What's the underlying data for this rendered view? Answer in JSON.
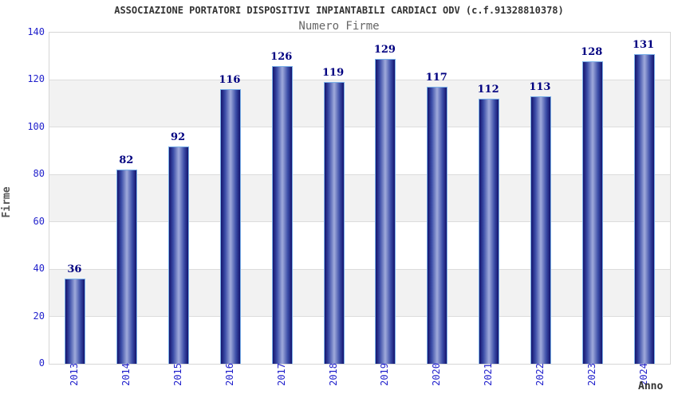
{
  "header": {
    "title": "ASSOCIAZIONE PORTATORI DISPOSITIVI INPIANTABILI CARDIACI ODV (c.f.91328810378)",
    "subtitle": "Numero Firme"
  },
  "chart_data": {
    "type": "bar",
    "title": "ASSOCIAZIONE PORTATORI DISPOSITIVI INPIANTABILI CARDIACI ODV (c.f.91328810378)",
    "subtitle": "Numero Firme",
    "categories": [
      "2013",
      "2014",
      "2015",
      "2016",
      "2017",
      "2018",
      "2019",
      "2020",
      "2021",
      "2022",
      "2023",
      "2024"
    ],
    "values": [
      36,
      82,
      92,
      116,
      126,
      119,
      129,
      117,
      112,
      113,
      128,
      131
    ],
    "xlabel": "Anno",
    "ylabel": "Firme",
    "ylim": [
      0,
      140
    ],
    "yticks": [
      0,
      20,
      40,
      60,
      80,
      100,
      120,
      140
    ],
    "gray_bands": [
      [
        20,
        40
      ],
      [
        60,
        80
      ],
      [
        100,
        120
      ]
    ],
    "grid": true,
    "legend": false,
    "bar_labels_shown": true,
    "colors": {
      "bar_edge_dark": "#14146e",
      "bar_mid": "#3c4ea8",
      "bar_center_light": "#9faadb",
      "bar_border": "#7ab0e8",
      "value_label": "#000080",
      "tick_label": "#2222cc",
      "band_gray": "#f2f2f2",
      "gridline": "#dcdcdc",
      "title_text": "#333333",
      "subtitle_text": "#666666"
    }
  }
}
